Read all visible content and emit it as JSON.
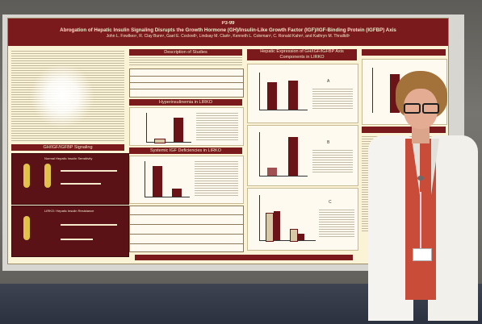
{
  "poster": {
    "id": "P3-99",
    "title": "Abrogation of Hepatic Insulin Signaling Disrupts the Growth Hormone (GH)/Insulin-Like Growth Factor (IGF)/IGF-Binding Protein (IGFBP) Axis",
    "authors": "John L. Fowlkes¹, R. Clay Bunn¹, Gael E. Cockrell¹, Lindsay M. Clark¹, Kenneth L. Coleman², C. Ronald Kahn³, and Kathryn M. Thrailkill¹",
    "sections": {
      "description": "Description of Studies",
      "hyperinsulinemia": "Hyperinsulinemia in LIRKO",
      "signaling": "GH/IGF/IGFBP Signaling",
      "deficiencies": "Systemic IGF Deficiencies in LIRKO",
      "hepatic": "Hepatic Expression of GH/IGF/IGFBP Axis Components in LIRKO",
      "pathway_1": "Normal Hepatic Insulin Sensitivity",
      "pathway_2": "LIRKO: Hepatic Insulin Resistance"
    },
    "figure_letters": [
      "A",
      "B",
      "C"
    ]
  },
  "scene": {
    "presenter": "presenter-woman",
    "colors": {
      "poster_maroon": "#7a1a1d",
      "poster_cream": "#fbf3d6",
      "jacket": "#f5f3ef",
      "shirt": "#c84c38"
    }
  }
}
